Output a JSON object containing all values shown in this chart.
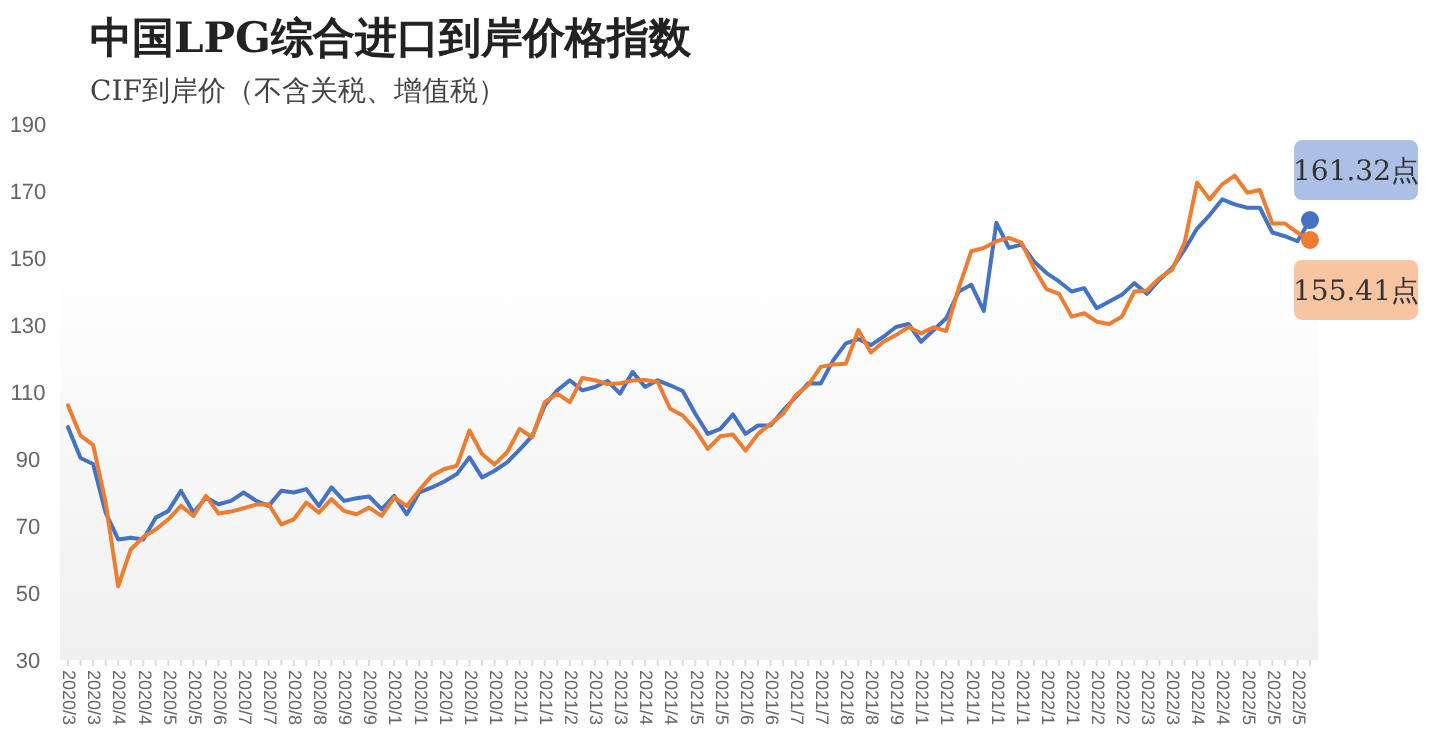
{
  "chart_data": {
    "type": "line",
    "title": "中国LPG综合进口到岸价格指数",
    "subtitle": "CIF到岸价（不含关税、增值税）",
    "categories": [
      "2020/3",
      null,
      "2020/3",
      null,
      "2020/4",
      null,
      "2020/4",
      null,
      "2020/5",
      null,
      "2020/5",
      null,
      "2020/6",
      null,
      "2020/7",
      null,
      "2020/7",
      null,
      "2020/8",
      null,
      "2020/8",
      null,
      "2020/9",
      null,
      "2020/9",
      null,
      "2020/1",
      null,
      "2020/1",
      null,
      "2020/1",
      null,
      "2020/1",
      null,
      "2020/1",
      null,
      "2021/1",
      null,
      "2021/1",
      null,
      "2021/2",
      null,
      "2021/3",
      null,
      "2021/3",
      null,
      "2021/4",
      null,
      "2021/4",
      null,
      "2021/5",
      null,
      "2021/5",
      null,
      "2021/6",
      null,
      "2021/6",
      null,
      "2021/7",
      null,
      "2021/7",
      null,
      "2021/8",
      null,
      "2021/8",
      null,
      "2021/9",
      null,
      "2021/1",
      null,
      "2021/1",
      null,
      "2021/1",
      null,
      "2021/1",
      null,
      "2021/1",
      null,
      "2022/1",
      null,
      "2022/1",
      null,
      "2022/2",
      null,
      "2022/2",
      null,
      "2022/3",
      null,
      "2022/3",
      null,
      "2022/4",
      null,
      "2022/4",
      null,
      "2022/5",
      null,
      "2022/5",
      null,
      "2022/5",
      null
    ],
    "series": [
      {
        "color": "#4472c4",
        "values": [
          99.5,
          90.3,
          88.5,
          74,
          66,
          66.5,
          66,
          72.5,
          74.5,
          80.5,
          74,
          78.5,
          76.5,
          77.5,
          80,
          77.5,
          76,
          80.5,
          80,
          81,
          76,
          81.5,
          77.5,
          78.3,
          78.8,
          75,
          79,
          73.5,
          80,
          81.5,
          83.3,
          85.5,
          90.5,
          84.5,
          86.5,
          89,
          92.8,
          96.8,
          106,
          110.5,
          113.5,
          110.5,
          111.5,
          113.3,
          109.5,
          116,
          111.5,
          113.5,
          112,
          110.3,
          103.5,
          97.5,
          99,
          103.3,
          97.5,
          100,
          100,
          104.5,
          108.5,
          112.6,
          112.5,
          119.5,
          124.5,
          125.8,
          124,
          126.5,
          129.4,
          130.3,
          125,
          128.5,
          132,
          140,
          142,
          134.2,
          160.5,
          153,
          154,
          149,
          145.5,
          143,
          140,
          141,
          135,
          137,
          139,
          142.5,
          139.3,
          143.5,
          147,
          152.5,
          158.8,
          162.8,
          167.5,
          166,
          165,
          165,
          157.6,
          156.5,
          155,
          161.32
        ],
        "value_labels": [
          null,
          null,
          null,
          null,
          null,
          null,
          null,
          null,
          null,
          null,
          null,
          null,
          null,
          null,
          null,
          null,
          null,
          null,
          null,
          null,
          null,
          null,
          null,
          null,
          null,
          null,
          null,
          null,
          null,
          null,
          null,
          null,
          null,
          null,
          null,
          null,
          null,
          null,
          null,
          null,
          null,
          null,
          null,
          null,
          null,
          null,
          null,
          null,
          null,
          null,
          null,
          null,
          null,
          null,
          null,
          null,
          null,
          null,
          null,
          null,
          null,
          null,
          null,
          null,
          null,
          null,
          null,
          null,
          null,
          null,
          null,
          null,
          null,
          null,
          null,
          null,
          null,
          null,
          null,
          null,
          null,
          null,
          null,
          null,
          null,
          null,
          null,
          null,
          null,
          null,
          null,
          null,
          null,
          null,
          null,
          null,
          null,
          null,
          null,
          "161.32点"
        ]
      },
      {
        "color": "#ed7d31",
        "values": [
          106,
          97,
          94.2,
          77,
          52,
          63,
          66.7,
          69,
          72,
          76,
          73,
          79,
          73.7,
          74.3,
          75.3,
          76.4,
          76.5,
          70.5,
          72,
          77,
          74,
          78,
          74.5,
          73.5,
          75.5,
          73,
          78.5,
          76,
          80.7,
          85,
          87,
          88,
          98.5,
          91.5,
          88.4,
          92,
          99,
          96.5,
          107,
          109.5,
          107,
          114.2,
          113.5,
          112.4,
          112.6,
          113.4,
          113.6,
          113,
          105,
          103,
          98.8,
          93,
          96.8,
          97.3,
          92.5,
          97.5,
          100.5,
          103.5,
          109,
          112,
          117.5,
          118.2,
          118.4,
          128.5,
          121.8,
          125,
          127,
          129.4,
          127.5,
          129.3,
          128.2,
          141,
          152,
          153,
          155,
          156,
          154.6,
          147,
          140.7,
          139.3,
          132.5,
          133.5,
          131,
          130.3,
          132.5,
          140,
          140.3,
          144,
          146.5,
          154.5,
          172.5,
          167.5,
          172,
          174.6,
          169.5,
          170.3,
          160.3,
          160.3,
          157.6,
          155.41
        ],
        "value_labels": [
          null,
          null,
          null,
          null,
          null,
          null,
          null,
          null,
          null,
          null,
          null,
          null,
          null,
          null,
          null,
          null,
          null,
          null,
          null,
          null,
          null,
          null,
          null,
          null,
          null,
          null,
          null,
          null,
          null,
          null,
          null,
          null,
          null,
          null,
          null,
          null,
          null,
          null,
          null,
          null,
          null,
          null,
          null,
          null,
          null,
          null,
          null,
          null,
          null,
          null,
          null,
          null,
          null,
          null,
          null,
          null,
          null,
          null,
          null,
          null,
          null,
          null,
          null,
          null,
          null,
          null,
          null,
          null,
          null,
          null,
          null,
          null,
          null,
          null,
          null,
          null,
          null,
          null,
          null,
          null,
          null,
          null,
          null,
          null,
          null,
          null,
          null,
          null,
          null,
          null,
          null,
          null,
          null,
          null,
          null,
          null,
          null,
          null,
          null,
          "155.41点"
        ]
      }
    ],
    "ylim": [
      30,
      190
    ],
    "yticks": [
      30,
      50,
      70,
      90,
      110,
      130,
      150,
      170,
      190
    ]
  }
}
